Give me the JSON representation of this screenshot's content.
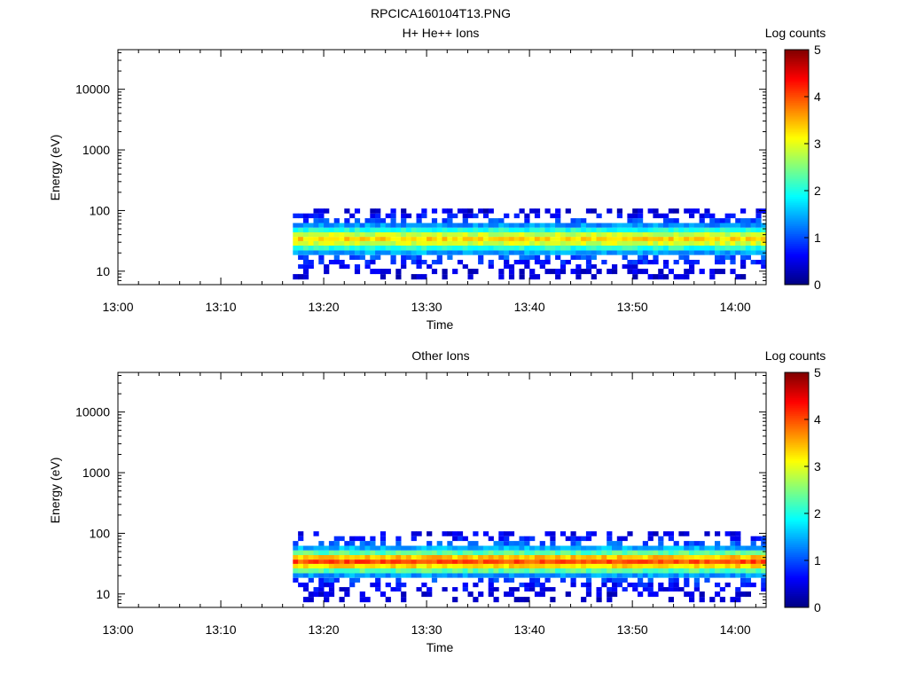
{
  "figure": {
    "title": "RPCICA160104T13.PNG"
  },
  "chart_data": [
    {
      "type": "heatmap",
      "title": "H+ He++ Ions",
      "xlabel": "Time",
      "ylabel": "Energy (eV)",
      "x_ticks": [
        "13:00",
        "13:10",
        "13:20",
        "13:30",
        "13:40",
        "13:50",
        "14:00"
      ],
      "y_ticks": [
        "10",
        "100",
        "1000",
        "10000"
      ],
      "y_scale": "log",
      "ylim": [
        6,
        45000
      ],
      "xlim": [
        "13:00",
        "14:03"
      ],
      "data_start": "13:17",
      "colorbar": {
        "label": "Log counts",
        "ticks": [
          "0",
          "1",
          "2",
          "3",
          "4",
          "5"
        ],
        "range": [
          0,
          5
        ]
      },
      "band": {
        "bins_eV": [
          8,
          10,
          12,
          14,
          17,
          20,
          24,
          29,
          34,
          40,
          48,
          57,
          68,
          82,
          98
        ],
        "log_counts_profile": [
          0.35,
          0.45,
          0.6,
          0.75,
          1.0,
          1.45,
          2.05,
          2.9,
          3.3,
          2.85,
          2.0,
          1.35,
          0.95,
          0.65,
          0.45
        ]
      }
    },
    {
      "type": "heatmap",
      "title": "Other Ions",
      "xlabel": "Time",
      "ylabel": "Energy (eV)",
      "x_ticks": [
        "13:00",
        "13:10",
        "13:20",
        "13:30",
        "13:40",
        "13:50",
        "14:00"
      ],
      "y_ticks": [
        "10",
        "100",
        "1000",
        "10000"
      ],
      "y_scale": "log",
      "ylim": [
        6,
        45000
      ],
      "xlim": [
        "13:00",
        "14:03"
      ],
      "data_start": "13:17",
      "colorbar": {
        "label": "Log counts",
        "ticks": [
          "0",
          "1",
          "2",
          "3",
          "4",
          "5"
        ],
        "range": [
          0,
          5
        ]
      },
      "band": {
        "bins_eV": [
          8,
          10,
          12,
          14,
          17,
          20,
          24,
          29,
          34,
          40,
          48,
          57,
          68,
          82,
          98
        ],
        "log_counts_profile": [
          0.3,
          0.4,
          0.55,
          0.7,
          0.95,
          1.4,
          2.3,
          3.3,
          4.0,
          3.4,
          2.3,
          1.5,
          1.05,
          0.7,
          0.5
        ]
      }
    }
  ]
}
